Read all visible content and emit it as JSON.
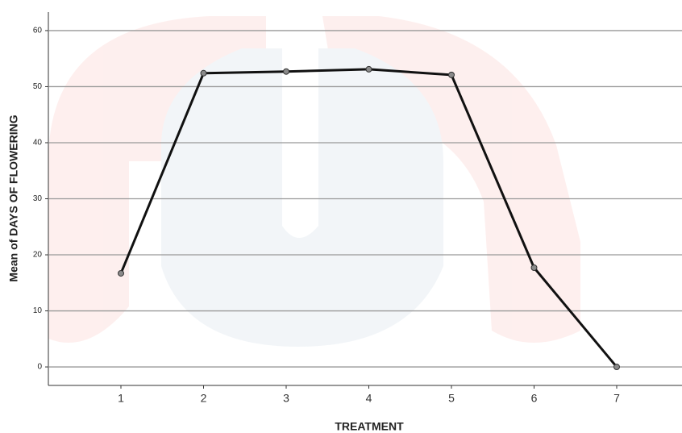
{
  "chart_data": {
    "type": "line",
    "x_label": "TREATMENT",
    "y_label": "Mean of DAYS OF FLOWERING",
    "categories": [
      "1",
      "2",
      "3",
      "4",
      "5",
      "6",
      "7"
    ],
    "values": [
      16.7,
      52.4,
      52.7,
      53.1,
      52.1,
      17.7,
      0
    ],
    "color": "#111111",
    "marker_color": "#8a8a8a",
    "ylim": [
      -3.3,
      63.3
    ],
    "yticks": [
      0,
      10,
      20,
      30,
      40,
      50,
      60
    ],
    "grid": true
  }
}
